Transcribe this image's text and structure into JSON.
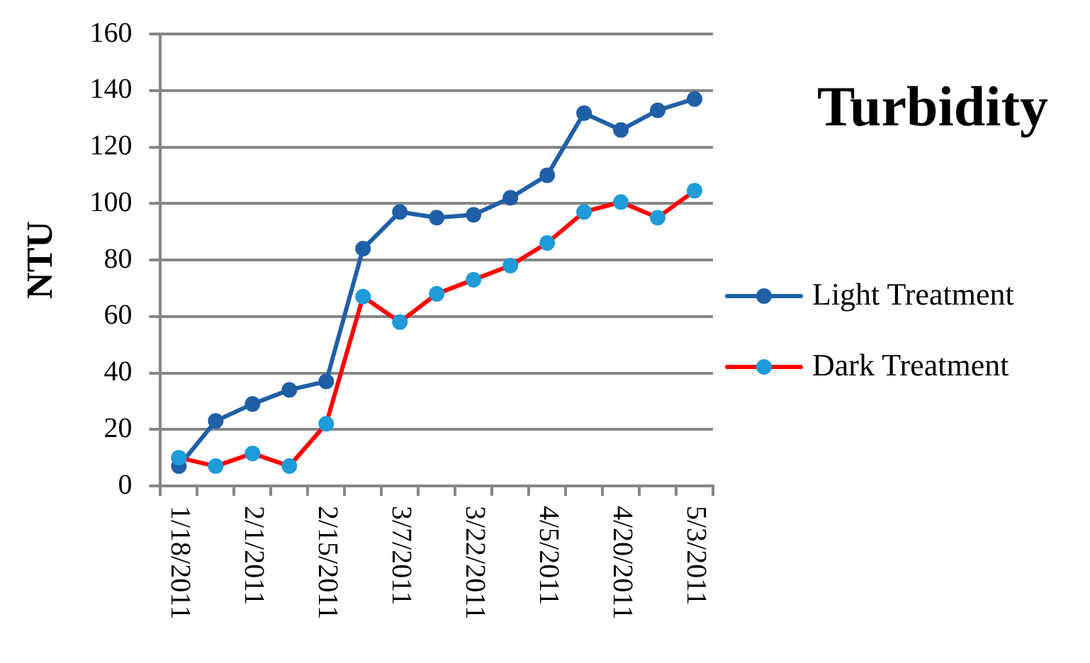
{
  "chart_data": {
    "type": "line",
    "title": "Turbidity",
    "ylabel": "NTU",
    "categories": [
      "1/18/2011",
      null,
      "2/1/2011",
      null,
      "2/15/2011",
      null,
      "3/7/2011",
      null,
      "3/22/2011",
      null,
      "4/5/2011",
      null,
      "4/20/2011",
      null,
      "5/3/2011"
    ],
    "series": [
      {
        "name": "Light Treatment",
        "color": "#1f5fa6",
        "values": [
          7,
          23,
          29,
          34,
          37,
          84,
          97,
          95,
          96,
          102,
          110,
          132,
          126,
          133,
          137
        ]
      },
      {
        "name": "Dark Treatment",
        "color": "#ff0000",
        "colors": [
          "#1f9bd7",
          "#1f9bd7",
          "#1f9bd7",
          "#1f9bd7",
          "#1f9bd7",
          "#1f9bd7",
          "#1f9bd7",
          "#1f9bd7",
          "#1f9bd7",
          "#1f9bd7",
          "#1f9bd7",
          "#1f9bd7",
          "#1f9bd7",
          "#1f9bd7",
          "#1f9bd7"
        ],
        "values": [
          10,
          7,
          11.5,
          7,
          22,
          67,
          58,
          68,
          73,
          78,
          86,
          97,
          100.5,
          95,
          104.5
        ]
      }
    ],
    "ylim": [
      0,
      160
    ],
    "yticks": [
      0,
      20,
      40,
      60,
      80,
      100,
      120,
      140,
      160
    ],
    "grid": "y",
    "legend": "right",
    "marker": "circle",
    "line_style": "solid"
  }
}
